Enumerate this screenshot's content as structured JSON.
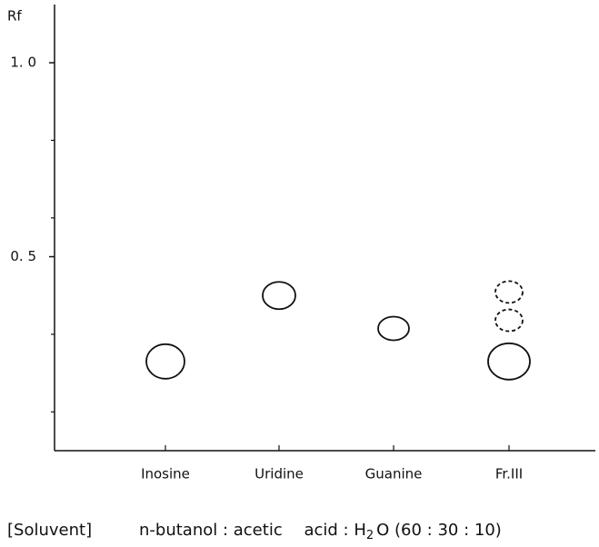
{
  "chart_data": {
    "type": "tlc",
    "y_label": "Rf",
    "categories": [
      "Inosine",
      "Uridine",
      "Guanine",
      "Fr.III"
    ],
    "values": [
      [
        0.23
      ],
      [
        0.4
      ],
      [
        0.315
      ],
      [
        0.23,
        0.336,
        0.409
      ]
    ],
    "line_styles": [
      [
        "solid"
      ],
      [
        "solid"
      ],
      [
        "solid"
      ],
      [
        "solid",
        "dashed",
        "dashed"
      ]
    ],
    "ylim": [
      0,
      1.15
    ],
    "yticks": [
      {
        "value": 0.5,
        "label": "0. 5"
      },
      {
        "value": 1.0,
        "label": "1. 0"
      }
    ],
    "minor_yticks": [
      0.1,
      0.3,
      0.6,
      0.8
    ],
    "solvent_label": "[Soluvent]",
    "solvent_parts": [
      "n-butanol : acetic",
      "acid : H",
      "2",
      "O (60 : 30 : 10)"
    ]
  }
}
